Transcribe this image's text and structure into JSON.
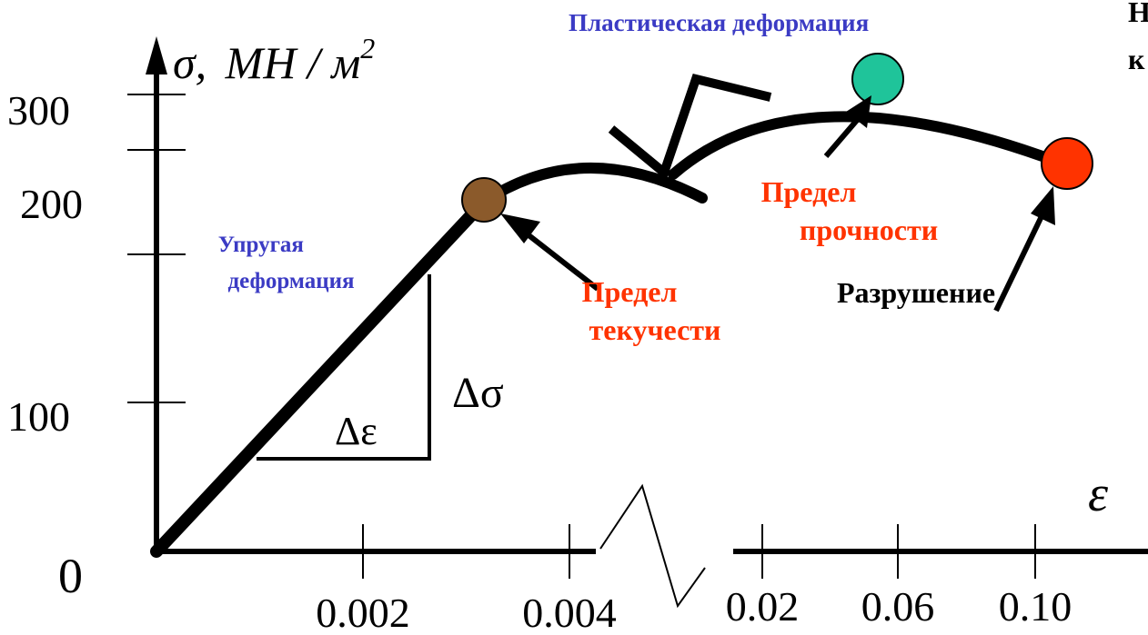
{
  "chart_data": {
    "type": "line",
    "title": "",
    "ylabel": "σ, МН / м²",
    "ylabel_parts": {
      "symbol": "σ",
      "unit": "МН / м",
      "sup": "2"
    },
    "xlabel": "ε",
    "ylim": [
      0,
      300
    ],
    "y_ticks": [
      {
        "value": 0,
        "label": "0"
      },
      {
        "value": 100,
        "label": "100"
      },
      {
        "value": 200,
        "label": "200"
      },
      {
        "value": 300,
        "label": "300"
      }
    ],
    "y_minor_ticks": [
      150
    ],
    "x_broken_axis": true,
    "x_ticks_segment1": [
      {
        "value": 0.002,
        "label": "0.002"
      },
      {
        "value": 0.004,
        "label": "0.004"
      }
    ],
    "x_ticks_segment2": [
      {
        "value": 0.02,
        "label": "0.02"
      },
      {
        "value": 0.06,
        "label": "0.06"
      },
      {
        "value": 0.1,
        "label": "0.10"
      }
    ],
    "elastic_line": {
      "from": {
        "x": 0,
        "y": 0
      },
      "to": {
        "x": 0.0032,
        "y": 168
      }
    },
    "slope_triangle": {
      "dx_label": "Δε",
      "dy_label": "Δσ"
    },
    "points": [
      {
        "name": "yield",
        "x": 0.0032,
        "y": 168,
        "color": "#8B5A2B"
      },
      {
        "name": "ultimate",
        "x": 0.056,
        "y": 305,
        "color": "#1FC49A"
      },
      {
        "name": "fracture",
        "x": 0.108,
        "y": 240,
        "color": "#FF3300"
      }
    ],
    "annotations": [
      {
        "id": "elastic",
        "lines": [
          "Упругая",
          "деформация"
        ],
        "color": "#3B3BC4"
      },
      {
        "id": "plastic",
        "lines": [
          "Пластическая деформация"
        ],
        "color": "#3B3BC4"
      },
      {
        "id": "yield",
        "lines": [
          "Предел",
          "текучести"
        ],
        "color": "#FF3300"
      },
      {
        "id": "ultimate",
        "lines": [
          "Предел",
          "прочности"
        ],
        "color": "#FF3300"
      },
      {
        "id": "fracture",
        "lines": [
          "Разрушение"
        ],
        "color": "#000000"
      }
    ],
    "cut_off_text": [
      "Н",
      "к"
    ]
  }
}
